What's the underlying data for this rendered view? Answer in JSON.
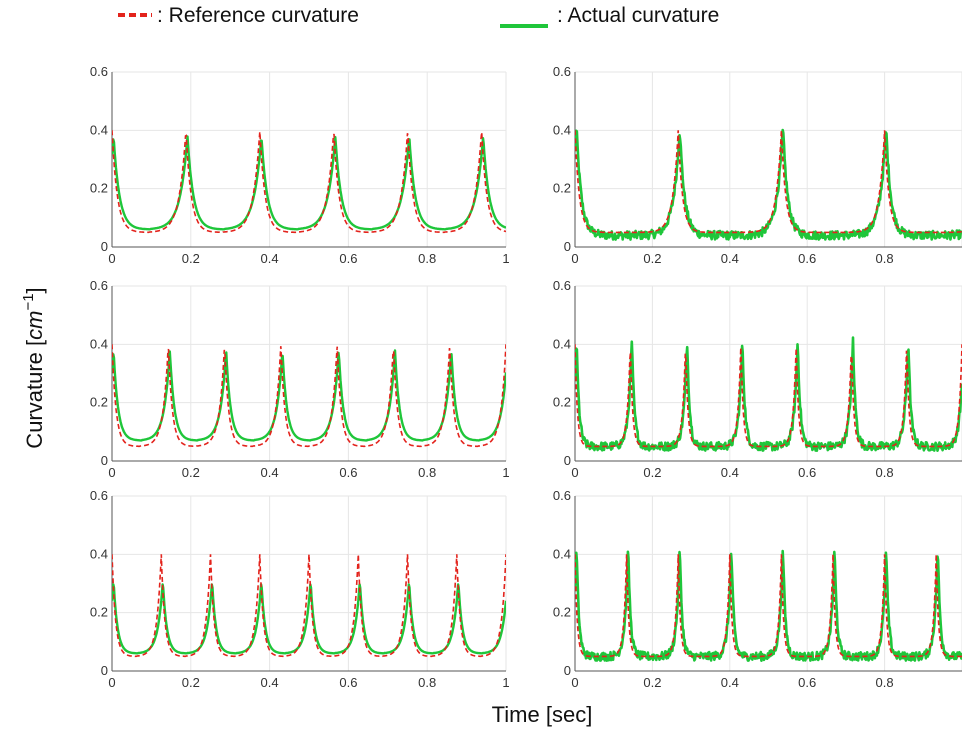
{
  "legend": {
    "reference_label": ": Reference curvature",
    "actual_label": ": Actual curvature"
  },
  "axes": {
    "xlabel": "Time [sec]",
    "ylabel_text": "Curvature [",
    "ylabel_unit": "cm",
    "ylabel_exponent": "−1",
    "ylabel_close": "]"
  },
  "colors": {
    "reference": "#e3231c",
    "actual": "#1fc63a",
    "grid": "#e6e6e6",
    "axis": "#555555"
  },
  "chart_data": [
    {
      "type": "line",
      "panel": "row1-left",
      "peaks_per_sec": 5.33,
      "x": [
        0,
        1
      ],
      "ylim": [
        0,
        0.6
      ],
      "xlim": [
        0,
        1
      ],
      "yticks": [
        "0",
        "0.2",
        "0.4",
        "0.6"
      ],
      "xticks": [
        "0",
        "0.2",
        "0.4",
        "0.6",
        "0.8",
        "1"
      ],
      "series": [
        {
          "role": "reference",
          "peak": 0.4,
          "base": 0.05
        },
        {
          "role": "actual",
          "peak": 0.38,
          "base": 0.06
        }
      ]
    },
    {
      "type": "line",
      "panel": "row1-right",
      "peaks_per_sec": 3.75,
      "x": [
        0,
        1
      ],
      "ylim": [
        0,
        0.6
      ],
      "xlim": [
        0,
        1
      ],
      "yticks": [
        "0",
        "0.2",
        "0.4",
        "0.6"
      ],
      "xticks": [
        "0",
        "0.2",
        "0.4",
        "0.6",
        "0.8",
        ""
      ],
      "series": [
        {
          "role": "reference",
          "peak": 0.4,
          "base": 0.05
        },
        {
          "role": "actual",
          "peak": 0.41,
          "base": 0.04
        }
      ]
    },
    {
      "type": "line",
      "panel": "row2-left",
      "peaks_per_sec": 7.0,
      "x": [
        0,
        1
      ],
      "ylim": [
        0,
        0.6
      ],
      "xlim": [
        0,
        1
      ],
      "yticks": [
        "0",
        "0.2",
        "0.4",
        "0.6"
      ],
      "xticks": [
        "0",
        "0.2",
        "0.4",
        "0.6",
        "0.8",
        "1"
      ],
      "series": [
        {
          "role": "reference",
          "peak": 0.4,
          "base": 0.05
        },
        {
          "role": "actual",
          "peak": 0.38,
          "base": 0.07
        }
      ]
    },
    {
      "type": "line",
      "panel": "row2-right",
      "peaks_per_sec": 7.0,
      "x": [
        0,
        1
      ],
      "ylim": [
        0,
        0.6
      ],
      "xlim": [
        0,
        1
      ],
      "yticks": [
        "0",
        "0.2",
        "0.4",
        "0.6"
      ],
      "xticks": [
        "0",
        "0.2",
        "0.4",
        "0.6",
        "0.8",
        ""
      ],
      "series": [
        {
          "role": "reference",
          "peak": 0.4,
          "base": 0.05
        },
        {
          "role": "actual",
          "peak": 0.42,
          "base": 0.05
        }
      ]
    },
    {
      "type": "line",
      "panel": "row3-left",
      "peaks_per_sec": 8.0,
      "x": [
        0,
        1
      ],
      "ylim": [
        0,
        0.6
      ],
      "xlim": [
        0,
        1
      ],
      "yticks": [
        "0",
        "0.2",
        "0.4",
        "0.6"
      ],
      "xticks": [
        "0",
        "0.2",
        "0.4",
        "0.6",
        "0.8",
        "1"
      ],
      "series": [
        {
          "role": "reference",
          "peak": 0.4,
          "base": 0.05
        },
        {
          "role": "actual",
          "peak": 0.31,
          "base": 0.06
        }
      ]
    },
    {
      "type": "line",
      "panel": "row3-right",
      "peaks_per_sec": 7.5,
      "x": [
        0,
        1
      ],
      "ylim": [
        0,
        0.6
      ],
      "xlim": [
        0,
        1
      ],
      "yticks": [
        "0",
        "0.2",
        "0.4",
        "0.6"
      ],
      "xticks": [
        "0",
        "0.2",
        "0.4",
        "0.6",
        "0.8",
        ""
      ],
      "series": [
        {
          "role": "reference",
          "peak": 0.4,
          "base": 0.05
        },
        {
          "role": "actual",
          "peak": 0.43,
          "base": 0.05
        }
      ]
    }
  ]
}
